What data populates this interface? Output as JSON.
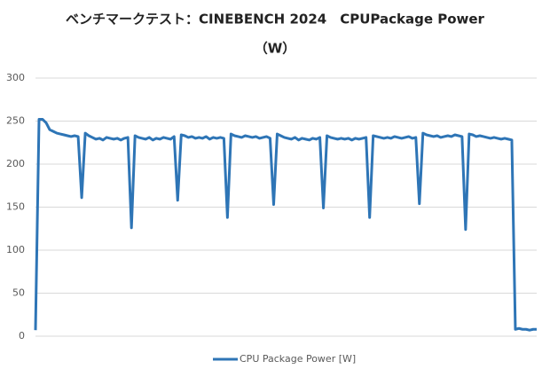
{
  "chart_data": {
    "type": "line",
    "title": [
      "ベンチマークテスト：CINEBENCH 2024　CPUPackage Power",
      "（W）"
    ],
    "ylim": [
      0,
      300
    ],
    "yticks": [
      0,
      50,
      100,
      150,
      200,
      250,
      300
    ],
    "grid": true,
    "legend": "bottom",
    "series": [
      {
        "name": "CPU Package Power [W]",
        "color": "#2e75b6",
        "values": [
          7,
          252,
          252,
          248,
          240,
          238,
          236,
          235,
          234,
          233,
          232,
          233,
          232,
          161,
          236,
          233,
          231,
          229,
          230,
          228,
          231,
          230,
          229,
          230,
          228,
          230,
          231,
          126,
          233,
          231,
          230,
          229,
          231,
          228,
          230,
          229,
          231,
          230,
          229,
          232,
          158,
          234,
          233,
          231,
          232,
          230,
          231,
          230,
          232,
          229,
          231,
          230,
          231,
          230,
          138,
          235,
          233,
          232,
          231,
          233,
          232,
          231,
          232,
          230,
          231,
          232,
          230,
          153,
          235,
          233,
          231,
          230,
          229,
          231,
          228,
          230,
          229,
          228,
          230,
          229,
          231,
          149,
          233,
          231,
          230,
          229,
          230,
          229,
          230,
          228,
          230,
          229,
          230,
          231,
          138,
          233,
          232,
          231,
          230,
          231,
          230,
          232,
          231,
          230,
          231,
          232,
          230,
          231,
          154,
          236,
          234,
          233,
          232,
          233,
          231,
          232,
          233,
          232,
          234,
          233,
          232,
          124,
          235,
          234,
          232,
          233,
          232,
          231,
          230,
          231,
          230,
          229,
          230,
          229,
          228,
          8,
          9,
          8,
          8,
          7,
          8,
          8
        ]
      }
    ]
  }
}
